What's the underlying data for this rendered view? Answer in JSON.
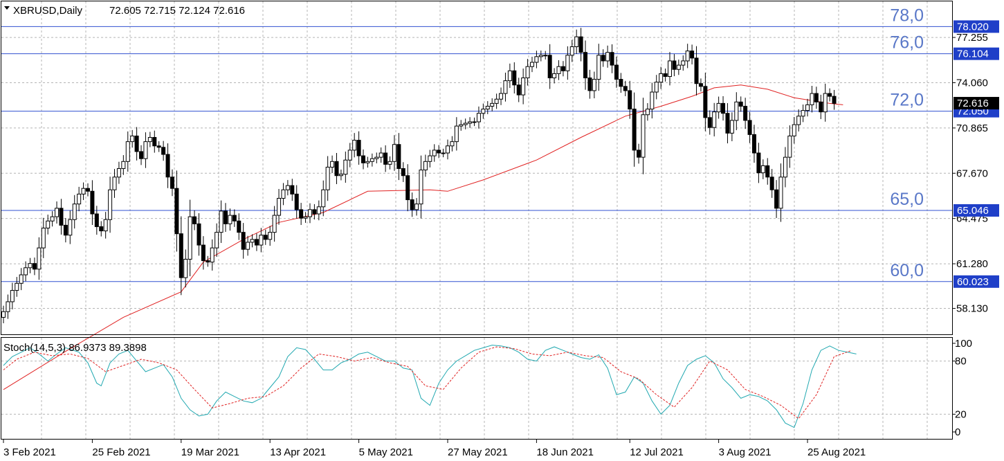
{
  "chart_data": [
    {
      "type": "candlestick",
      "symbol_label": "XBRUSD,Daily",
      "ohlc_label": "72.605 72.715 72.124 72.616",
      "y_ticks": [
        "58.130",
        "61.280",
        "64.475",
        "67.670",
        "70.865",
        "74.060",
        "77.255"
      ],
      "ylim": [
        56.3,
        79.8
      ],
      "x_ticks": [
        "3 Feb 2021",
        "25 Feb 2021",
        "19 Mar 2021",
        "13 Apr 2021",
        "5 May 2021",
        "27 May 2021",
        "18 Jun 2021",
        "12 Jul 2021",
        "3 Aug 2021",
        "25 Aug 2021"
      ],
      "levels": [
        {
          "value": 78.02,
          "price_label": "78.020",
          "level_label": "78,0"
        },
        {
          "value": 76.104,
          "price_label": "76.104",
          "level_label": "76,0"
        },
        {
          "value": 72.05,
          "price_label": "72.050",
          "level_label": "72,0"
        },
        {
          "value": 65.046,
          "price_label": "65.046",
          "level_label": "65,0"
        },
        {
          "value": 60.023,
          "price_label": "60.023",
          "level_label": "60,0"
        }
      ],
      "current_price": {
        "value": 72.616,
        "label": "72.616"
      },
      "bars_close": [
        57.9,
        58.6,
        59.4,
        59.9,
        60.5,
        61.0,
        61.3,
        60.9,
        62.4,
        63.8,
        64.3,
        64.6,
        65.2,
        64.0,
        63.3,
        64.4,
        65.5,
        66.2,
        66.6,
        66.4,
        64.8,
        63.9,
        63.6,
        64.4,
        66.5,
        67.4,
        68.0,
        68.5,
        69.9,
        70.3,
        69.2,
        68.7,
        69.9,
        70.2,
        69.6,
        69.5,
        69.0,
        67.4,
        66.6,
        63.4,
        60.3,
        61.6,
        64.6,
        64.1,
        62.6,
        61.5,
        61.4,
        62.4,
        63.5,
        65.0,
        64.1,
        64.7,
        64.3,
        63.5,
        62.3,
        62.8,
        63.0,
        62.6,
        63.3,
        63.0,
        63.5,
        64.7,
        65.9,
        66.5,
        66.8,
        66.2,
        65.1,
        64.5,
        64.6,
        65.1,
        64.8,
        65.3,
        66.5,
        68.1,
        68.5,
        67.5,
        67.6,
        68.6,
        69.3,
        70.0,
        68.9,
        68.4,
        68.5,
        68.7,
        68.8,
        69.1,
        68.3,
        68.5,
        69.7,
        68.0,
        67.5,
        65.8,
        65.1,
        65.5,
        67.9,
        68.5,
        68.9,
        69.3,
        69.1,
        69.1,
        69.6,
        69.9,
        71.0,
        71.1,
        71.2,
        71.3,
        71.3,
        71.9,
        72.2,
        72.4,
        72.6,
        72.9,
        73.3,
        74.2,
        74.9,
        73.9,
        73.2,
        74.4,
        75.2,
        75.5,
        75.9,
        76.0,
        76.0,
        74.4,
        74.7,
        75.2,
        74.9,
        76.0,
        76.6,
        77.3,
        76.2,
        74.4,
        73.5,
        74.3,
        76.0,
        75.6,
        76.2,
        75.3,
        74.3,
        73.8,
        73.5,
        72.2,
        69.3,
        68.8,
        71.8,
        72.2,
        73.4,
        74.1,
        74.7,
        74.5,
        75.6,
        75.0,
        75.3,
        75.6,
        76.3,
        75.8,
        74.0,
        73.8,
        71.6,
        70.9,
        72.0,
        72.6,
        71.9,
        70.5,
        71.4,
        72.7,
        72.4,
        71.4,
        70.4,
        69.1,
        67.7,
        68.2,
        67.4,
        66.5,
        65.2,
        67.4,
        68.8,
        70.3,
        71.1,
        71.7,
        72.1,
        72.5,
        73.3,
        72.7,
        72.0,
        73.3,
        73.1,
        72.6
      ],
      "ma_points": [
        [
          0,
          52.4
        ],
        [
          14,
          55.1
        ],
        [
          27,
          57.5
        ],
        [
          40,
          59.3
        ],
        [
          45,
          61.4
        ],
        [
          54,
          63.0
        ],
        [
          62,
          64.2
        ],
        [
          72,
          64.9
        ],
        [
          82,
          66.4
        ],
        [
          96,
          66.5
        ],
        [
          100,
          66.4
        ],
        [
          108,
          67.2
        ],
        [
          120,
          68.6
        ],
        [
          130,
          70.2
        ],
        [
          140,
          71.7
        ],
        [
          148,
          72.4
        ],
        [
          155,
          73.1
        ],
        [
          160,
          73.7
        ],
        [
          166,
          73.9
        ],
        [
          172,
          73.6
        ],
        [
          178,
          73.0
        ],
        [
          182,
          72.8
        ],
        [
          186,
          72.6
        ],
        [
          189,
          72.5
        ]
      ],
      "stoch_label": "Stoch(14,5,3) 86.9373 89.3898",
      "stoch_ticks": [
        "100",
        "80",
        "20",
        "0"
      ],
      "stoch_k": [
        [
          0,
          75
        ],
        [
          2,
          85
        ],
        [
          4,
          90
        ],
        [
          6,
          95
        ],
        [
          8,
          88
        ],
        [
          10,
          80
        ],
        [
          12,
          88
        ],
        [
          14,
          95
        ],
        [
          17,
          90
        ],
        [
          19,
          78
        ],
        [
          21,
          55
        ],
        [
          22,
          52
        ],
        [
          24,
          78
        ],
        [
          26,
          88
        ],
        [
          28,
          92
        ],
        [
          30,
          80
        ],
        [
          32,
          68
        ],
        [
          34,
          72
        ],
        [
          36,
          76
        ],
        [
          38,
          62
        ],
        [
          40,
          38
        ],
        [
          42,
          25
        ],
        [
          44,
          18
        ],
        [
          46,
          20
        ],
        [
          48,
          35
        ],
        [
          50,
          45
        ],
        [
          52,
          40
        ],
        [
          54,
          35
        ],
        [
          56,
          33
        ],
        [
          58,
          38
        ],
        [
          60,
          50
        ],
        [
          62,
          62
        ],
        [
          64,
          85
        ],
        [
          66,
          95
        ],
        [
          68,
          93
        ],
        [
          70,
          82
        ],
        [
          72,
          70
        ],
        [
          74,
          70
        ],
        [
          76,
          78
        ],
        [
          78,
          82
        ],
        [
          80,
          88
        ],
        [
          82,
          90
        ],
        [
          84,
          85
        ],
        [
          86,
          80
        ],
        [
          88,
          80
        ],
        [
          90,
          72
        ],
        [
          92,
          70
        ],
        [
          94,
          38
        ],
        [
          96,
          30
        ],
        [
          98,
          55
        ],
        [
          100,
          70
        ],
        [
          102,
          80
        ],
        [
          104,
          86
        ],
        [
          106,
          92
        ],
        [
          108,
          95
        ],
        [
          110,
          98
        ],
        [
          112,
          97
        ],
        [
          114,
          95
        ],
        [
          116,
          90
        ],
        [
          118,
          82
        ],
        [
          120,
          80
        ],
        [
          122,
          92
        ],
        [
          124,
          96
        ],
        [
          126,
          92
        ],
        [
          128,
          88
        ],
        [
          130,
          84
        ],
        [
          132,
          82
        ],
        [
          134,
          87
        ],
        [
          136,
          72
        ],
        [
          138,
          42
        ],
        [
          140,
          45
        ],
        [
          142,
          62
        ],
        [
          144,
          55
        ],
        [
          146,
          35
        ],
        [
          148,
          20
        ],
        [
          150,
          30
        ],
        [
          152,
          55
        ],
        [
          154,
          75
        ],
        [
          156,
          82
        ],
        [
          158,
          86
        ],
        [
          160,
          78
        ],
        [
          162,
          60
        ],
        [
          164,
          50
        ],
        [
          166,
          38
        ],
        [
          168,
          42
        ],
        [
          170,
          40
        ],
        [
          172,
          35
        ],
        [
          174,
          25
        ],
        [
          176,
          10
        ],
        [
          178,
          5
        ],
        [
          180,
          32
        ],
        [
          182,
          70
        ],
        [
          184,
          92
        ],
        [
          186,
          97
        ],
        [
          188,
          92
        ],
        [
          190,
          90
        ],
        [
          192,
          88
        ]
      ],
      "stoch_d": [
        [
          0,
          70
        ],
        [
          3,
          82
        ],
        [
          7,
          90
        ],
        [
          11,
          86
        ],
        [
          15,
          88
        ],
        [
          19,
          83
        ],
        [
          23,
          68
        ],
        [
          27,
          75
        ],
        [
          31,
          82
        ],
        [
          35,
          78
        ],
        [
          39,
          70
        ],
        [
          43,
          48
        ],
        [
          47,
          27
        ],
        [
          51,
          32
        ],
        [
          55,
          38
        ],
        [
          59,
          40
        ],
        [
          63,
          52
        ],
        [
          67,
          72
        ],
        [
          71,
          88
        ],
        [
          75,
          85
        ],
        [
          79,
          80
        ],
        [
          83,
          84
        ],
        [
          87,
          78
        ],
        [
          91,
          74
        ],
        [
          95,
          52
        ],
        [
          99,
          48
        ],
        [
          103,
          72
        ],
        [
          107,
          90
        ],
        [
          111,
          96
        ],
        [
          115,
          94
        ],
        [
          119,
          88
        ],
        [
          123,
          86
        ],
        [
          127,
          90
        ],
        [
          131,
          86
        ],
        [
          135,
          84
        ],
        [
          139,
          68
        ],
        [
          143,
          60
        ],
        [
          147,
          42
        ],
        [
          151,
          28
        ],
        [
          155,
          50
        ],
        [
          159,
          80
        ],
        [
          163,
          70
        ],
        [
          167,
          48
        ],
        [
          171,
          40
        ],
        [
          175,
          30
        ],
        [
          179,
          15
        ],
        [
          183,
          42
        ],
        [
          187,
          85
        ],
        [
          191,
          92
        ]
      ]
    }
  ]
}
